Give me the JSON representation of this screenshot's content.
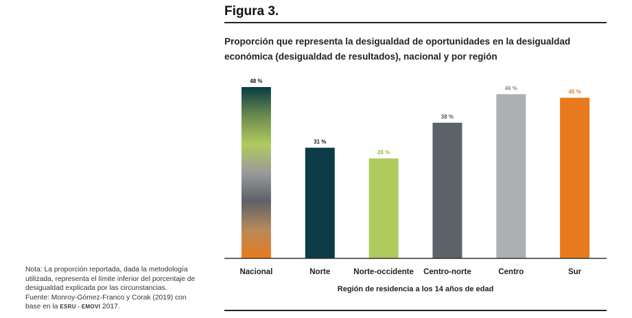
{
  "figure": {
    "label": "Figura 3."
  },
  "chart_data": {
    "type": "bar",
    "title_line1": "Proporción que representa la desigualdad de oportunidades en la desigualdad",
    "title_line2": "económica (desigualdad de resultados), nacional y por región",
    "xlabel": "Región de residencia a los 14 años de edad",
    "ylabel": "",
    "categories": [
      "Nacional",
      "Norte",
      "Norte-occidente",
      "Centro-norte",
      "Centro",
      "Sur"
    ],
    "values": [
      48,
      31,
      28,
      38,
      46,
      45
    ],
    "value_labels": [
      "48 %",
      "31 %",
      "28 %",
      "38 %",
      "46 %",
      "45 %"
    ],
    "colors": [
      "gradient",
      "#0a3b47",
      "#afcb5d",
      "#5d6169",
      "#aeafb3",
      "#e87a1d"
    ],
    "label_colors": [
      "#111111",
      "#111111",
      "#9bbf3a",
      "#555555",
      "#888888",
      "#e87a1d"
    ],
    "ylim": [
      0,
      48
    ],
    "grid": false,
    "gradient_stops": [
      "#0a3b47",
      "#6b8a4e",
      "#afcb5d",
      "#9a9a9a",
      "#5d6169",
      "#b88a5a",
      "#e87a1d"
    ]
  },
  "note": {
    "line1": "Nota: La proporción reportada, dada la metodología",
    "line2": "utilizada, representa el límite inferior del porcentaje de",
    "line3": "desigualdad explicada por las circunstancias.",
    "line4": "Fuente: Monroy-Gómez-Franco y Corak (2019) con",
    "line5_pre": "base en la",
    "survey": "ESRU - EMOVI",
    "year": "2017."
  }
}
